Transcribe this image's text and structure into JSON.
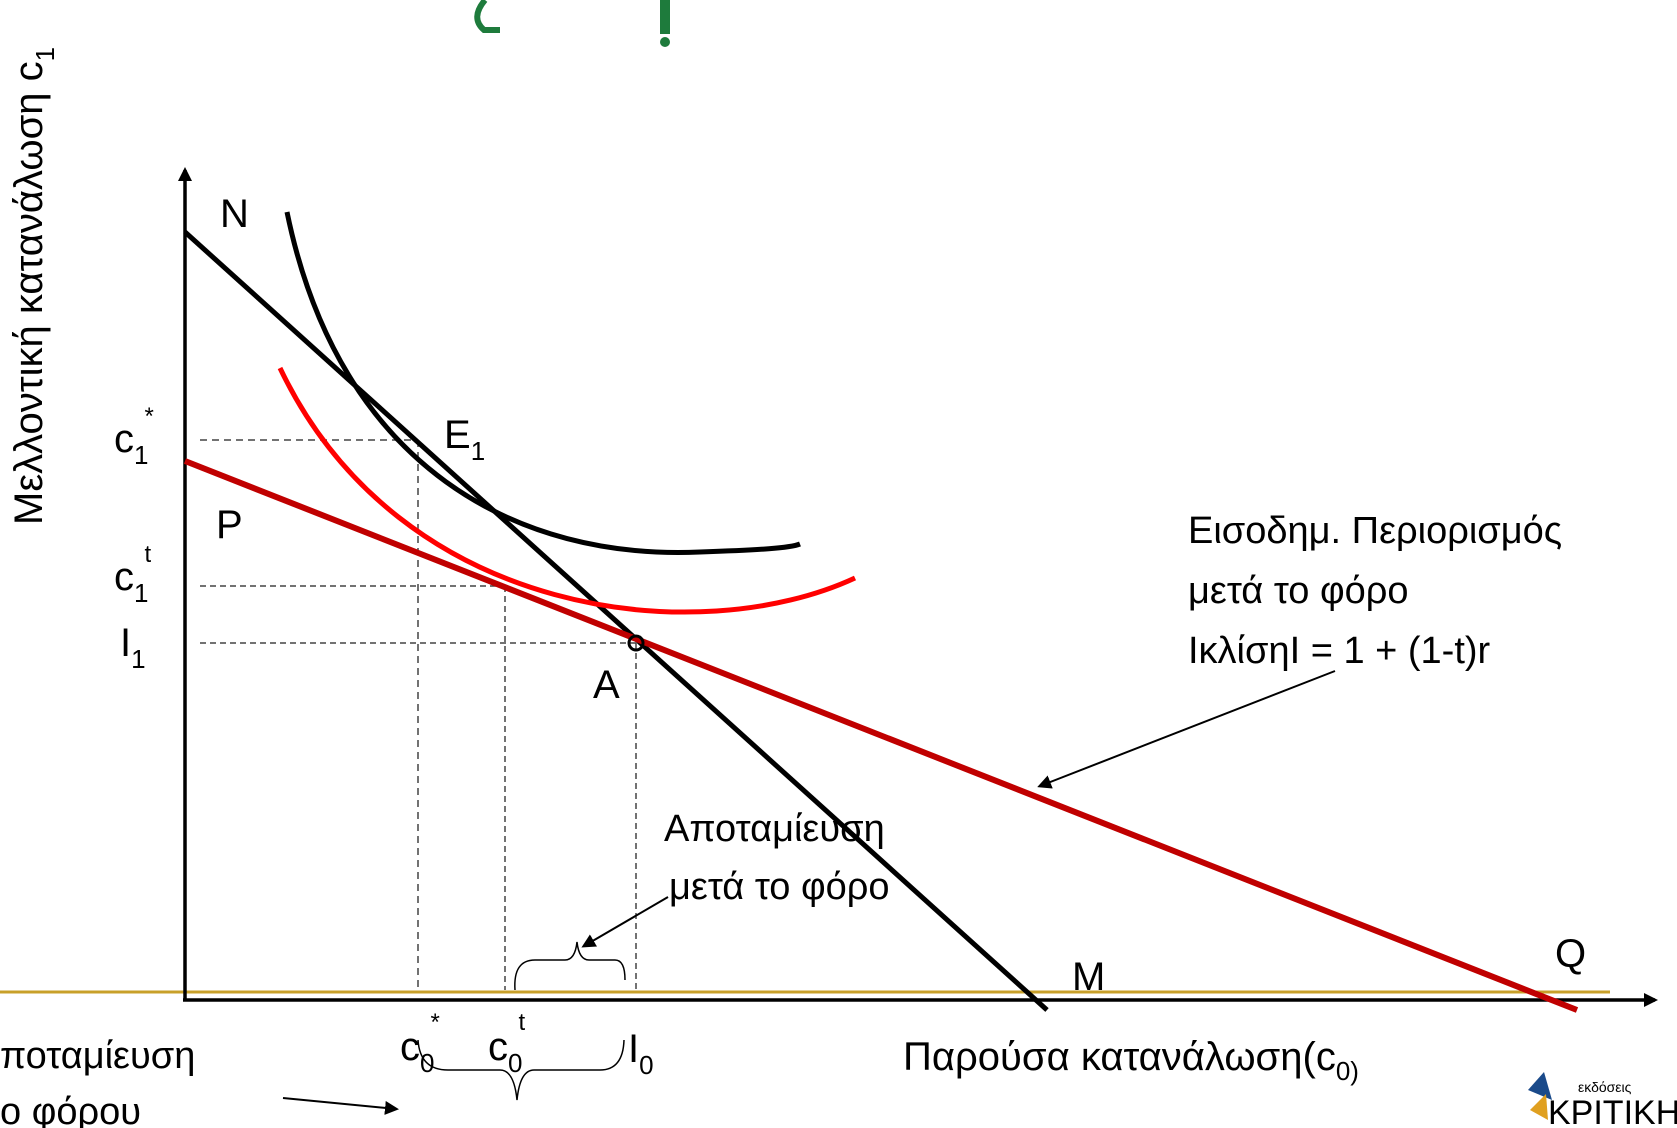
{
  "colors": {
    "axis": "#000000",
    "budget_before": "#000000",
    "budget_after": "#c00000",
    "indifference_high": "#000000",
    "indifference_low": "#ff0000",
    "ground_line": "#c8a02a",
    "dashed": "#444444",
    "title_fragment": "#1e7b3c"
  },
  "axes": {
    "y_label": "Μελλοντική κατανάλωση c",
    "y_label_sub": "1",
    "x_label": "Παρούσα κατανάλωση(c",
    "x_label_sub": "0)"
  },
  "points": {
    "N": "N",
    "M": "M",
    "P": "P",
    "Q": "Q",
    "A": "A",
    "E": "E",
    "E_sub": "1"
  },
  "y_ticks": {
    "c1_star": {
      "base": "c",
      "sub": "1",
      "sup": "*"
    },
    "c1_t": {
      "base": "c",
      "sub": "1",
      "sup": "t"
    },
    "I1": {
      "base": "I",
      "sub": "1"
    }
  },
  "x_ticks": {
    "c0_star": {
      "base": "c",
      "sub": "0",
      "sup": "*"
    },
    "c0_t": {
      "base": "c",
      "sub": "0",
      "sup": "t"
    },
    "I0": {
      "base": "I",
      "sub": "0"
    }
  },
  "annotations": {
    "budget_after_line1": "Εισοδημ. Περιορισμός",
    "budget_after_line2": "μετά το φόρο",
    "budget_after_line3": "ΙκλίσηΙ = 1 + (1-t)r",
    "saving_after_line1": "Αποταμίευση",
    "saving_after_line2": "μετά το φόρο",
    "saving_before_line1": "ποταμίευση",
    "saving_before_line2": "ο φόρου"
  },
  "logo": {
    "small": "εκδόσεις",
    "main": "ΚΡΙΤΙΚΗ"
  }
}
